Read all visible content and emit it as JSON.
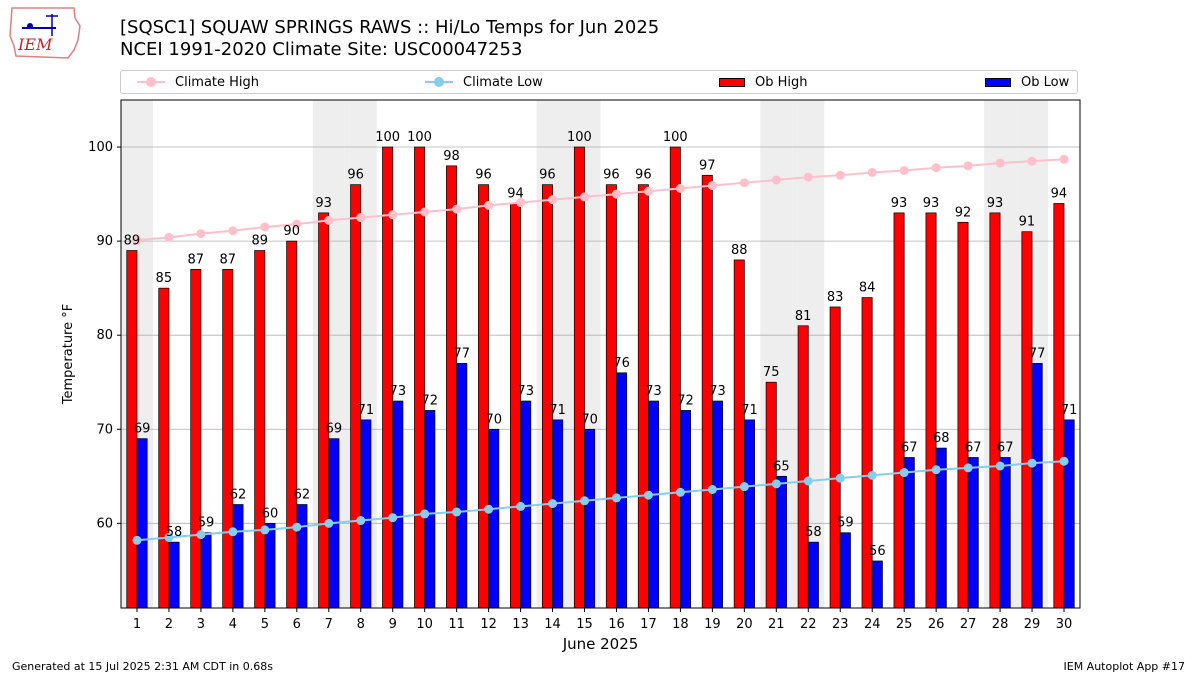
{
  "header": {
    "title_line1": "[SQSC1] SQUAW SPRINGS RAWS :: Hi/Lo Temps for Jun 2025",
    "title_line2": "NCEI 1991-2020 Climate Site: USC00047253",
    "logo_text": "IEM"
  },
  "footer": {
    "generated": "Generated at 15 Jul 2025 2:31 AM CDT in 0.68s",
    "app": "IEM Autoplot App #17"
  },
  "legend": {
    "climate_high": "Climate High",
    "climate_low": "Climate Low",
    "ob_high": "Ob High",
    "ob_low": "Ob Low"
  },
  "colors": {
    "ob_high": "#ff0000",
    "ob_low": "#0000ff",
    "climate_high": "#ffc0cb",
    "climate_low": "#87ceeb",
    "weekend_band": "#eeeeee",
    "grid": "#b0b0b0"
  },
  "chart_data": {
    "type": "bar",
    "title": "[SQSC1] SQUAW SPRINGS RAWS :: Hi/Lo Temps for Jun 2025",
    "xlabel": "June 2025",
    "ylabel": "Temperature °F",
    "ylim": [
      51,
      105
    ],
    "yticks": [
      60,
      70,
      80,
      90,
      100
    ],
    "grid": true,
    "legend_position": "top",
    "categories": [
      "1",
      "2",
      "3",
      "4",
      "5",
      "6",
      "7",
      "8",
      "9",
      "10",
      "11",
      "12",
      "13",
      "14",
      "15",
      "16",
      "17",
      "18",
      "19",
      "20",
      "21",
      "22",
      "23",
      "24",
      "25",
      "26",
      "27",
      "28",
      "29",
      "30"
    ],
    "weekend_days": [
      1,
      7,
      8,
      14,
      15,
      21,
      22,
      28,
      29
    ],
    "series": [
      {
        "name": "Ob High",
        "kind": "bar",
        "values": [
          89,
          85,
          87,
          87,
          89,
          90,
          93,
          96,
          100,
          100,
          98,
          96,
          94,
          96,
          100,
          96,
          96,
          100,
          97,
          88,
          75,
          81,
          83,
          84,
          93,
          93,
          92,
          93,
          91,
          94
        ]
      },
      {
        "name": "Ob Low",
        "kind": "bar",
        "values": [
          69,
          58,
          59,
          62,
          60,
          62,
          69,
          71,
          73,
          72,
          77,
          70,
          73,
          71,
          70,
          76,
          73,
          72,
          73,
          71,
          65,
          58,
          59,
          56,
          67,
          68,
          67,
          67,
          77,
          71
        ]
      },
      {
        "name": "Climate High",
        "kind": "line",
        "values": [
          90.1,
          90.4,
          90.8,
          91.1,
          91.5,
          91.8,
          92.2,
          92.5,
          92.8,
          93.1,
          93.4,
          93.8,
          94.1,
          94.4,
          94.7,
          95.0,
          95.3,
          95.6,
          95.9,
          96.2,
          96.5,
          96.8,
          97.0,
          97.3,
          97.5,
          97.8,
          98.0,
          98.3,
          98.5,
          98.7
        ]
      },
      {
        "name": "Climate Low",
        "kind": "line",
        "values": [
          58.2,
          58.5,
          58.8,
          59.1,
          59.3,
          59.6,
          60.0,
          60.3,
          60.6,
          61.0,
          61.2,
          61.5,
          61.8,
          62.1,
          62.4,
          62.7,
          63.0,
          63.3,
          63.6,
          63.9,
          64.2,
          64.5,
          64.8,
          65.1,
          65.4,
          65.7,
          65.9,
          66.1,
          66.4,
          66.6
        ]
      }
    ]
  }
}
